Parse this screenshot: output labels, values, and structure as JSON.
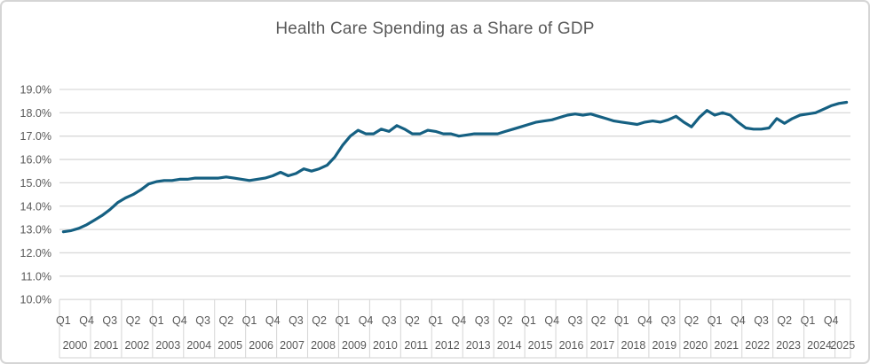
{
  "chart_data": {
    "type": "line",
    "title": "Health Care Spending as a Share of GDP",
    "unit": "percent of GDP",
    "frequency": "quarterly",
    "legend": "none",
    "grid": "horizontal",
    "ylim": [
      10.0,
      19.0
    ],
    "y_tick_step": 1.0,
    "y_tick_labels": [
      "19.0%",
      "18.0%",
      "17.0%",
      "16.0%",
      "15.0%",
      "14.0%",
      "13.0%",
      "12.0%",
      "11.0%",
      "10.0%"
    ],
    "x_axis": {
      "quarter_tick_labels": [
        "Q1",
        "Q4",
        "Q3",
        "Q2",
        "Q1",
        "Q4",
        "Q3",
        "Q2",
        "Q1",
        "Q4",
        "Q3",
        "Q2",
        "Q1",
        "Q4",
        "Q3",
        "Q2",
        "Q1",
        "Q4",
        "Q3",
        "Q2",
        "Q1",
        "Q4",
        "Q3",
        "Q2",
        "Q1",
        "Q4",
        "Q3",
        "Q2",
        "Q1",
        "Q4",
        "Q3",
        "Q2",
        "Q1",
        "Q4"
      ],
      "quarter_tick_interval": 3,
      "year_group_labels": [
        "2000",
        "2001",
        "2002",
        "2003",
        "2004",
        "2005",
        "2006",
        "2007",
        "2008",
        "2009",
        "2010",
        "2011",
        "2012",
        "2013",
        "2014",
        "2015",
        "2016",
        "2017",
        "2018",
        "2019",
        "2020",
        "2021",
        "2022",
        "2023",
        "2024",
        "2025"
      ]
    },
    "periods": [
      "2000Q1",
      "2000Q2",
      "2000Q3",
      "2000Q4",
      "2001Q1",
      "2001Q2",
      "2001Q3",
      "2001Q4",
      "2002Q1",
      "2002Q2",
      "2002Q3",
      "2002Q4",
      "2003Q1",
      "2003Q2",
      "2003Q3",
      "2003Q4",
      "2004Q1",
      "2004Q2",
      "2004Q3",
      "2004Q4",
      "2005Q1",
      "2005Q2",
      "2005Q3",
      "2005Q4",
      "2006Q1",
      "2006Q2",
      "2006Q3",
      "2006Q4",
      "2007Q1",
      "2007Q2",
      "2007Q3",
      "2007Q4",
      "2008Q1",
      "2008Q2",
      "2008Q3",
      "2008Q4",
      "2009Q1",
      "2009Q2",
      "2009Q3",
      "2009Q4",
      "2010Q1",
      "2010Q2",
      "2010Q3",
      "2010Q4",
      "2011Q1",
      "2011Q2",
      "2011Q3",
      "2011Q4",
      "2012Q1",
      "2012Q2",
      "2012Q3",
      "2012Q4",
      "2013Q1",
      "2013Q2",
      "2013Q3",
      "2013Q4",
      "2014Q1",
      "2014Q2",
      "2014Q3",
      "2014Q4",
      "2015Q1",
      "2015Q2",
      "2015Q3",
      "2015Q4",
      "2016Q1",
      "2016Q2",
      "2016Q3",
      "2016Q4",
      "2017Q1",
      "2017Q2",
      "2017Q3",
      "2017Q4",
      "2018Q1",
      "2018Q2",
      "2018Q3",
      "2018Q4",
      "2019Q1",
      "2019Q2",
      "2019Q3",
      "2019Q4",
      "2020Q1",
      "2020Q2",
      "2020Q3",
      "2020Q4",
      "2021Q1",
      "2021Q2",
      "2021Q3",
      "2021Q4",
      "2022Q1",
      "2022Q2",
      "2022Q3",
      "2022Q4",
      "2023Q1",
      "2023Q2",
      "2023Q3",
      "2023Q4",
      "2024Q1",
      "2024Q2",
      "2024Q3",
      "2024Q4",
      "2025Q1",
      "2025Q2"
    ],
    "values": [
      12.9,
      12.95,
      13.05,
      13.2,
      13.4,
      13.6,
      13.85,
      14.15,
      14.35,
      14.5,
      14.7,
      14.95,
      15.05,
      15.1,
      15.1,
      15.15,
      15.15,
      15.2,
      15.2,
      15.2,
      15.2,
      15.25,
      15.2,
      15.15,
      15.1,
      15.15,
      15.2,
      15.3,
      15.45,
      15.3,
      15.4,
      15.6,
      15.5,
      15.6,
      15.75,
      16.1,
      16.6,
      17.0,
      17.25,
      17.1,
      17.1,
      17.3,
      17.2,
      17.45,
      17.3,
      17.1,
      17.1,
      17.25,
      17.2,
      17.1,
      17.1,
      17.0,
      17.05,
      17.1,
      17.1,
      17.1,
      17.1,
      17.2,
      17.3,
      17.4,
      17.5,
      17.6,
      17.65,
      17.7,
      17.8,
      17.9,
      17.95,
      17.9,
      17.95,
      17.85,
      17.75,
      17.65,
      17.6,
      17.55,
      17.5,
      17.6,
      17.65,
      17.6,
      17.7,
      17.85,
      17.6,
      17.4,
      17.8,
      18.1,
      17.9,
      18.0,
      17.9,
      17.6,
      17.35,
      17.3,
      17.3,
      17.35,
      17.75,
      17.55,
      17.75,
      17.9,
      17.95,
      18.0,
      18.15,
      18.3,
      18.4,
      18.45
    ],
    "colors": {
      "line": "#156082",
      "gridline": "#D9D9D9",
      "axis_separator": "#D9D9D9",
      "axis_text": "#595959",
      "title_text": "#595959",
      "background": "#FFFFFF",
      "frame_border": "#D5D5D5"
    }
  }
}
